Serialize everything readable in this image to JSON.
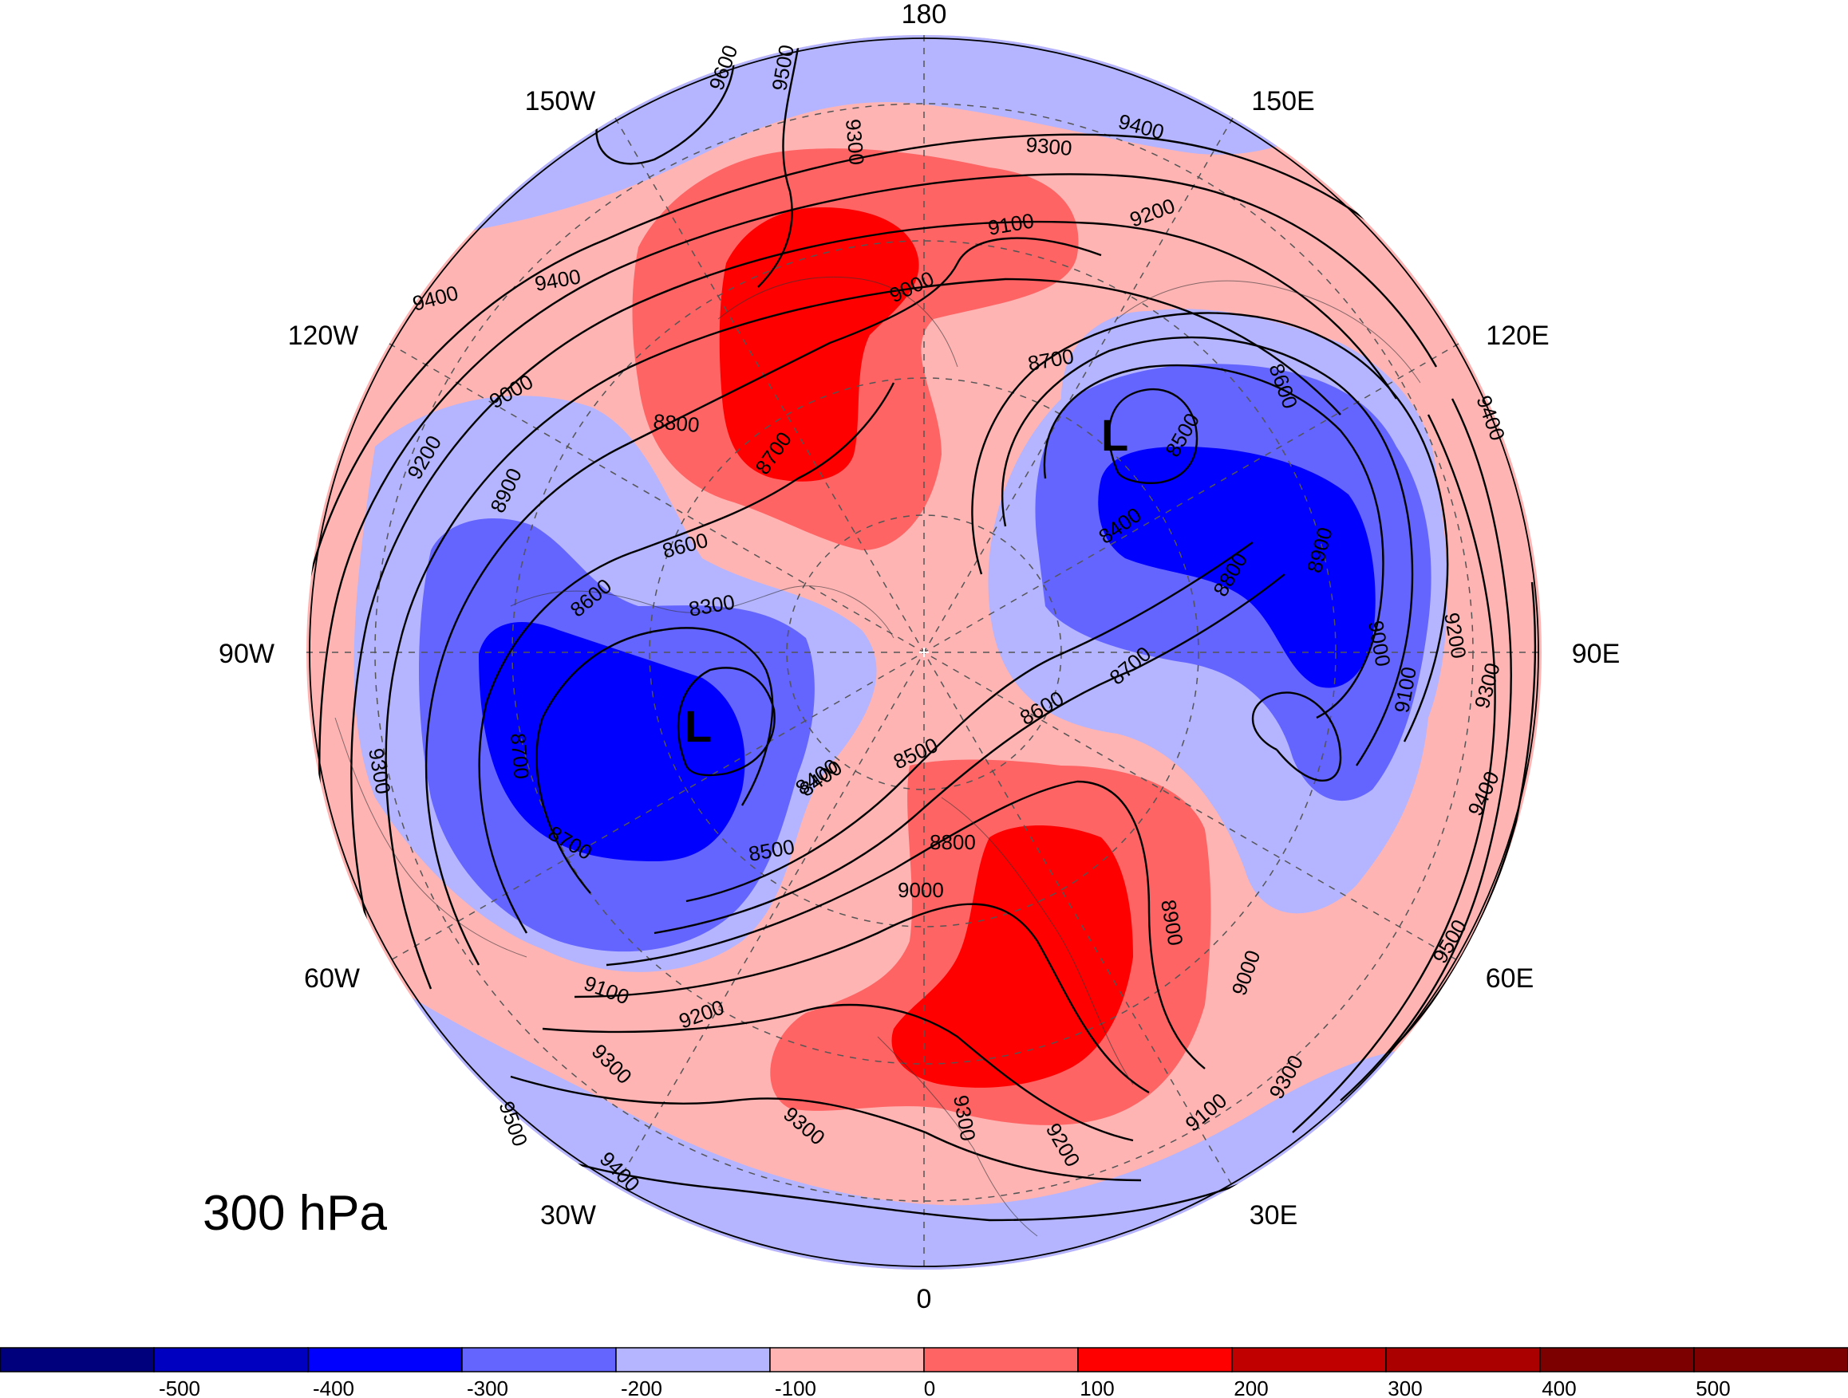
{
  "level_label": "300 hPa",
  "longitude_labels": [
    "180",
    "150W",
    "150E",
    "120W",
    "120E",
    "90W",
    "90E",
    "60W",
    "60E",
    "30W",
    "30E",
    "0"
  ],
  "contour_labels": [
    "9600",
    "9500",
    "9300",
    "9400",
    "9300",
    "9200",
    "9100",
    "9000",
    "8600",
    "8800",
    "8700",
    "9000",
    "9200",
    "8900",
    "9400",
    "8600",
    "8600",
    "8300",
    "8500",
    "8400",
    "8400",
    "8800",
    "8900",
    "9000",
    "9200",
    "9100",
    "9300",
    "9400",
    "9500",
    "9400",
    "9300",
    "8700",
    "8700",
    "8400",
    "8500",
    "8600",
    "8700",
    "8800",
    "9000",
    "9100",
    "9200",
    "9300",
    "9300",
    "9200",
    "9300",
    "8900",
    "9000",
    "9100",
    "9300",
    "9500",
    "9400",
    "8500",
    "8700",
    "9400"
  ],
  "low_markers": [
    "L",
    "L"
  ],
  "colorbar": {
    "ticks": [
      "-500",
      "-400",
      "-300",
      "-200",
      "-100",
      "0",
      "100",
      "200",
      "300",
      "400",
      "500"
    ],
    "colors": [
      "#00007d",
      "#0000c0",
      "#0000ff",
      "#6464ff",
      "#b4b4ff",
      "#ffb4b4",
      "#ff6464",
      "#ff0000",
      "#c00000",
      "#ab0000",
      "#7d0000"
    ]
  },
  "colors": {
    "neg_light": "#b4b4ff",
    "neg_mid": "#6464ff",
    "neg_strong": "#0000ff",
    "pos_light": "#ffb4b4",
    "pos_mid": "#ff6464",
    "pos_strong": "#ff0000"
  }
}
